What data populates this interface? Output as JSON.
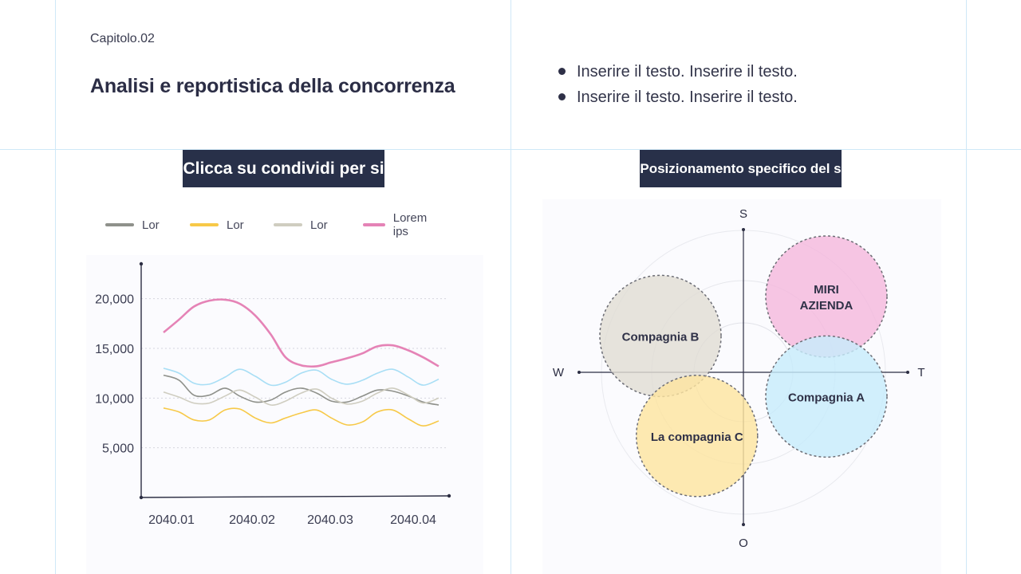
{
  "header": {
    "chapter": "Capitolo.02",
    "title": "Analisi e reportistica della concorrenza",
    "bullets": [
      "Inserire il testo. Inserire il testo.",
      "Inserire il testo. Inserire il testo."
    ]
  },
  "left_panel": {
    "banner": "Clicca su condividi per si"
  },
  "right_panel": {
    "banner": "Posizionamento specifico del s"
  },
  "chart_data": [
    {
      "type": "line",
      "title": "",
      "xlabel": "",
      "ylabel": "",
      "x_ticks": [
        "2040.01",
        "2040.02",
        "2040.03",
        "2040.04"
      ],
      "y_ticks": [
        5000,
        10000,
        15000,
        20000
      ],
      "y_tick_labels": [
        "5,000",
        "10,000",
        "15,000",
        "20,000"
      ],
      "ylim": [
        0,
        23500
      ],
      "grid": true,
      "legend_position": "top",
      "series": [
        {
          "name": "Lor",
          "color": "#8f918b",
          "values": [
            12300,
            11800,
            10300,
            10300,
            11000,
            10200,
            9600,
            9800,
            10600,
            11000,
            10500,
            9700,
            9600,
            10200,
            10800,
            10700,
            10200,
            9600,
            9300
          ]
        },
        {
          "name": "Lor",
          "color": "#f7c948",
          "values": [
            9000,
            8600,
            7800,
            7800,
            8800,
            8900,
            8000,
            7500,
            8000,
            8500,
            8800,
            8000,
            7300,
            7600,
            8600,
            8800,
            7900,
            7200,
            7700
          ]
        },
        {
          "name": "Lor",
          "color": "#cfcdc0",
          "values": [
            10600,
            10100,
            9500,
            9500,
            10200,
            10800,
            10100,
            9300,
            9700,
            10500,
            10900,
            10000,
            9400,
            9700,
            10500,
            11000,
            10300,
            9500,
            10000
          ]
        },
        {
          "name": "Lorem ips",
          "color": "#e583b6",
          "values": [
            16600,
            17900,
            19200,
            19800,
            19900,
            19500,
            18300,
            16400,
            14100,
            13300,
            13200,
            13600,
            14000,
            14500,
            15200,
            15300,
            14800,
            14100,
            13200
          ]
        }
      ],
      "extra_series": {
        "name": "",
        "color": "#a8def5",
        "values": [
          13000,
          12500,
          11500,
          11400,
          12100,
          12900,
          12200,
          11300,
          11600,
          12500,
          12800,
          11900,
          11400,
          11800,
          12500,
          12900,
          12100,
          11300,
          11900
        ]
      },
      "x": [
        1,
        1.17,
        1.33,
        1.5,
        1.67,
        1.83,
        2,
        2.17,
        2.33,
        2.5,
        2.67,
        2.83,
        3,
        3.17,
        3.33,
        3.5,
        3.67,
        3.83,
        4
      ]
    },
    {
      "type": "scatter",
      "title": "",
      "axes": {
        "top": "S",
        "bottom": "O",
        "left": "W",
        "right": "T"
      },
      "xlim": [
        -1,
        1
      ],
      "ylim": [
        -1,
        1
      ],
      "points": [
        {
          "label": "MIRI AZIENDA",
          "x": 0.5,
          "y": 0.5,
          "color": "#f4b8dd"
        },
        {
          "label": "Compagnia B",
          "x": -0.5,
          "y": 0.24,
          "color": "#e1ddd4"
        },
        {
          "label": "Compagnia A",
          "x": 0.5,
          "y": -0.16,
          "color": "#c7ebfb"
        },
        {
          "label": "La compagnia C",
          "x": -0.28,
          "y": -0.42,
          "color": "#fde4a0"
        }
      ]
    }
  ],
  "colors": {
    "navy": "#283049",
    "grid_line": "#cfe8f7",
    "axis": "#2b2d42",
    "pink": "#e583b6",
    "yellow": "#f7c948",
    "gray": "#8f918b",
    "beige": "#cfcdc0",
    "light_blue": "#a8def5"
  }
}
